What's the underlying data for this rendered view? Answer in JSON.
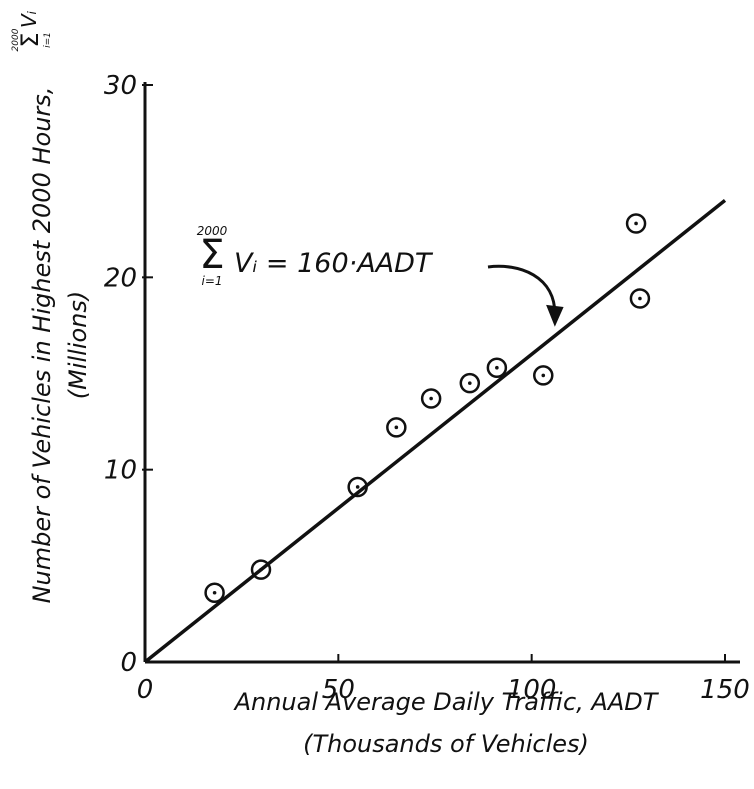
{
  "chart_data": {
    "type": "scatter",
    "xlabel": "Annual Average Daily Traffic, AADT",
    "xlabel_sub": "(Thousands of Vehicles)",
    "ylabel": "Number of Vehicles in Highest 2000 Hours,",
    "ylabel_sub": "(Millions)",
    "ylabel_symbol": {
      "upper": "2000",
      "sigma": "Σ",
      "term": "Vᵢ",
      "lower": "i=1"
    },
    "xlim": [
      0,
      150
    ],
    "ylim": [
      0,
      30
    ],
    "x_ticks": [
      0,
      50,
      100,
      150
    ],
    "y_ticks": [
      0,
      10,
      20,
      30
    ],
    "grid": false,
    "points": [
      {
        "x": 18,
        "y": 3.6
      },
      {
        "x": 30,
        "y": 4.8
      },
      {
        "x": 55,
        "y": 9.1
      },
      {
        "x": 65,
        "y": 12.2
      },
      {
        "x": 74,
        "y": 13.7
      },
      {
        "x": 84,
        "y": 14.5
      },
      {
        "x": 91,
        "y": 15.3
      },
      {
        "x": 103,
        "y": 14.9
      },
      {
        "x": 127,
        "y": 22.8
      },
      {
        "x": 128,
        "y": 18.9
      }
    ],
    "fit_line": {
      "slope": 0.16,
      "intercept": 0,
      "x_range": [
        0,
        150
      ]
    },
    "annotation": {
      "sigma_upper": "2000",
      "sigma": "Σ",
      "sigma_lower": "i=1",
      "equation": "Vᵢ = 160·AADT",
      "arrow_target": {
        "x": 106,
        "y": 17.5
      }
    }
  }
}
